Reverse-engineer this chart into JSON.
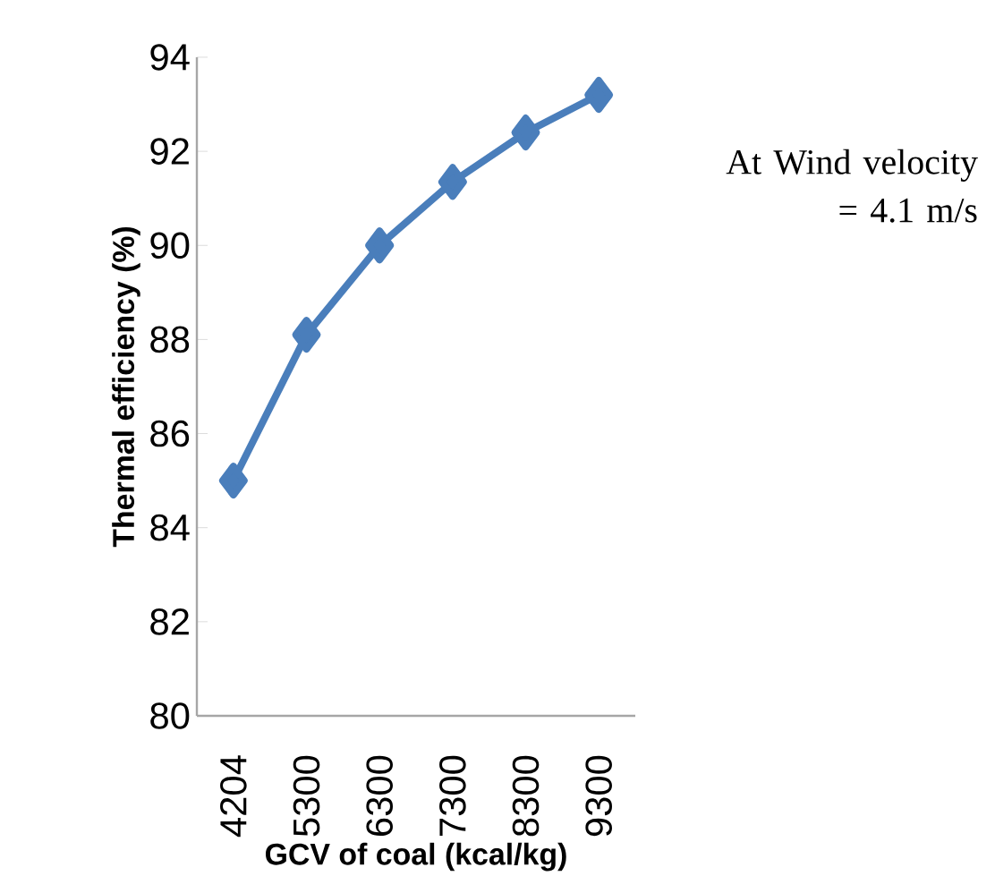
{
  "chart_data": {
    "type": "line",
    "xlabel": "GCV of coal (kcal/kg)",
    "ylabel": "Thermal efficiency (%)",
    "categories": [
      "4204",
      "5300",
      "6300",
      "7300",
      "8300",
      "9300"
    ],
    "series": [
      {
        "color": "#4a7ebb",
        "values": [
          85.0,
          88.1,
          90.0,
          91.35,
          92.4,
          93.2
        ]
      }
    ],
    "ylim": [
      80,
      94
    ],
    "yticks": [
      80,
      82,
      84,
      86,
      88,
      90,
      92,
      94
    ],
    "marker": "diamond",
    "line_style": "solid",
    "grid": false,
    "annotations": [
      "At Wind velocity = 4.1 m/s"
    ]
  }
}
